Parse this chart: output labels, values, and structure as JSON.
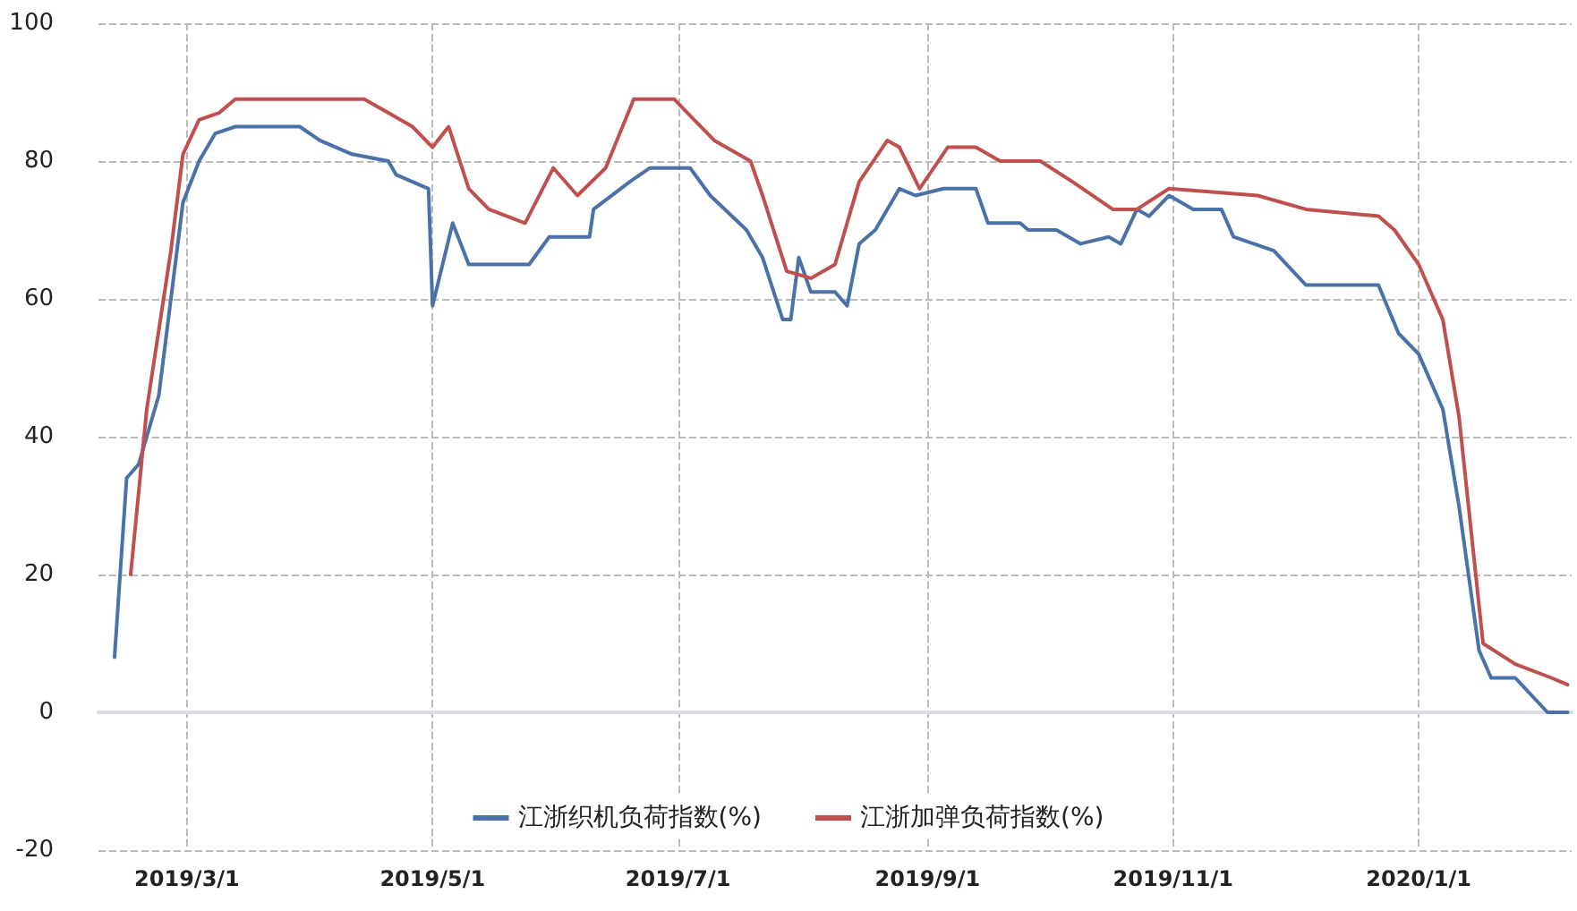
{
  "chart_data": {
    "type": "line",
    "xlim": [
      "2019-02-07",
      "2020-02-08"
    ],
    "xticks": [
      {
        "value": "2019-03-01",
        "label": "2019/3/1"
      },
      {
        "value": "2019-05-01",
        "label": "2019/5/1"
      },
      {
        "value": "2019-07-01",
        "label": "2019/7/1"
      },
      {
        "value": "2019-09-01",
        "label": "2019/9/1"
      },
      {
        "value": "2019-11-01",
        "label": "2019/11/1"
      },
      {
        "value": "2020-01-01",
        "label": "2020/1/1"
      }
    ],
    "ylim": [
      -20,
      100
    ],
    "yticks": [
      -20,
      0,
      20,
      40,
      60,
      80,
      100
    ],
    "grid": true,
    "legend": "bottom",
    "marker": "none",
    "line_style": "solid",
    "series": [
      {
        "name": "江浙织机负荷指数(%)",
        "color": "#4a72a8",
        "x": [
          "2019-02-11",
          "2019-02-14",
          "2019-02-17",
          "2019-02-22",
          "2019-02-28",
          "2019-03-04",
          "2019-03-08",
          "2019-03-13",
          "2019-03-29",
          "2019-04-03",
          "2019-04-11",
          "2019-04-20",
          "2019-04-22",
          "2019-04-30",
          "2019-05-01",
          "2019-05-06",
          "2019-05-10",
          "2019-05-25",
          "2019-05-30",
          "2019-06-09",
          "2019-06-10",
          "2019-06-19",
          "2019-06-24",
          "2019-07-04",
          "2019-07-09",
          "2019-07-18",
          "2019-07-22",
          "2019-07-27",
          "2019-07-29",
          "2019-07-31",
          "2019-08-03",
          "2019-08-09",
          "2019-08-12",
          "2019-08-15",
          "2019-08-19",
          "2019-08-25",
          "2019-08-29",
          "2019-09-05",
          "2019-09-13",
          "2019-09-16",
          "2019-09-24",
          "2019-09-26",
          "2019-10-03",
          "2019-10-09",
          "2019-10-16",
          "2019-10-19",
          "2019-10-23",
          "2019-10-26",
          "2019-10-31",
          "2019-11-06",
          "2019-11-13",
          "2019-11-16",
          "2019-11-26",
          "2019-12-04",
          "2019-12-22",
          "2019-12-27",
          "2020-01-01",
          "2020-01-07",
          "2020-01-11",
          "2020-01-16",
          "2020-01-19",
          "2020-01-25",
          "2020-02-02",
          "2020-02-07"
        ],
        "values": [
          8,
          34,
          36,
          46,
          74,
          80,
          84,
          85,
          85,
          83,
          81,
          80,
          78,
          76,
          59,
          71,
          65,
          65,
          69,
          69,
          73,
          77,
          79,
          79,
          75,
          70,
          66,
          57,
          57,
          66,
          61,
          61,
          59,
          68,
          70,
          76,
          75,
          76,
          76,
          71,
          71,
          70,
          70,
          68,
          69,
          68,
          73,
          72,
          75,
          73,
          73,
          69,
          67,
          62,
          62,
          55,
          52,
          44,
          30,
          9,
          5,
          5,
          0,
          0
        ]
      },
      {
        "name": "江浙加弹负荷指数(%)",
        "color": "#c0504d",
        "x": [
          "2019-02-15",
          "2019-02-19",
          "2019-02-25",
          "2019-02-28",
          "2019-03-04",
          "2019-03-09",
          "2019-03-13",
          "2019-04-14",
          "2019-04-20",
          "2019-04-26",
          "2019-05-01",
          "2019-05-05",
          "2019-05-10",
          "2019-05-15",
          "2019-05-24",
          "2019-05-31",
          "2019-06-06",
          "2019-06-13",
          "2019-06-20",
          "2019-06-30",
          "2019-07-05",
          "2019-07-10",
          "2019-07-19",
          "2019-07-22",
          "2019-07-28",
          "2019-08-03",
          "2019-08-09",
          "2019-08-15",
          "2019-08-22",
          "2019-08-25",
          "2019-08-30",
          "2019-09-06",
          "2019-09-13",
          "2019-09-19",
          "2019-09-29",
          "2019-10-07",
          "2019-10-17",
          "2019-10-23",
          "2019-10-31",
          "2019-11-22",
          "2019-12-04",
          "2019-12-22",
          "2019-12-26",
          "2020-01-01",
          "2020-01-07",
          "2020-01-11",
          "2020-01-15",
          "2020-01-17",
          "2020-01-25",
          "2020-02-03",
          "2020-02-07"
        ],
        "values": [
          20,
          44,
          67,
          81,
          86,
          87,
          89,
          89,
          87,
          85,
          82,
          85,
          76,
          73,
          71,
          79,
          75,
          79,
          89,
          89,
          86,
          83,
          80,
          75,
          64,
          63,
          65,
          77,
          83,
          82,
          76,
          82,
          82,
          80,
          80,
          77,
          73,
          73,
          76,
          75,
          73,
          72,
          70,
          65,
          57,
          43,
          21,
          10,
          7,
          5,
          4
        ]
      }
    ]
  }
}
